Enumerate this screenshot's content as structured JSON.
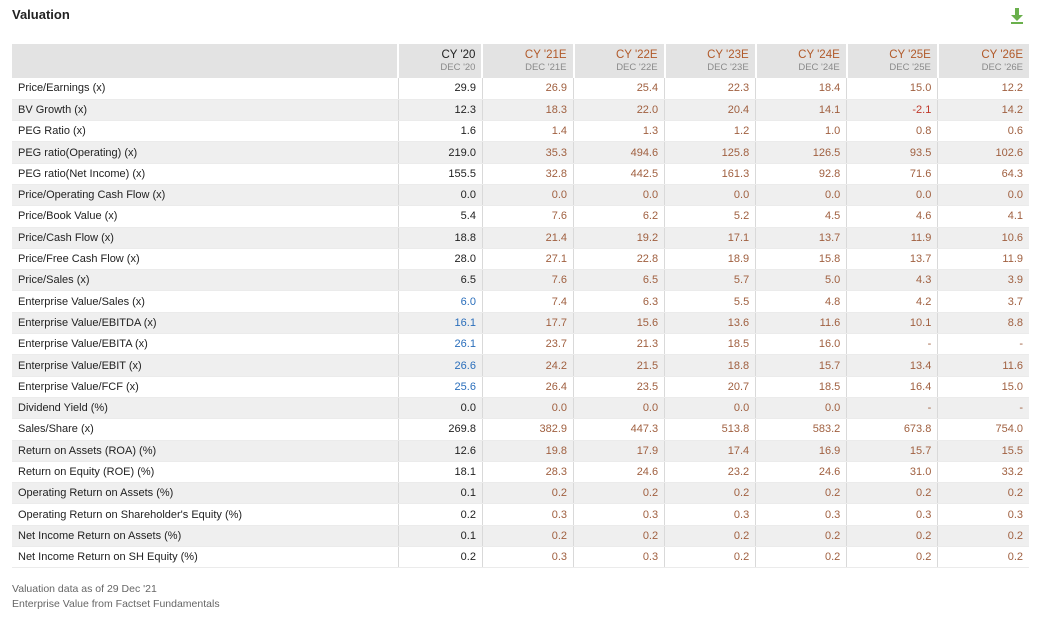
{
  "header": {
    "title": "Valuation",
    "download_icon": "download-arrow-icon",
    "download_color": "#6ab04c"
  },
  "columns": [
    {
      "year": "CY '20",
      "date": "DEC '20",
      "kind": "base"
    },
    {
      "year": "CY '21E",
      "date": "DEC '21E",
      "kind": "est"
    },
    {
      "year": "CY '22E",
      "date": "DEC '22E",
      "kind": "est"
    },
    {
      "year": "CY '23E",
      "date": "DEC '23E",
      "kind": "est"
    },
    {
      "year": "CY '24E",
      "date": "DEC '24E",
      "kind": "est"
    },
    {
      "year": "CY '25E",
      "date": "DEC '25E",
      "kind": "est"
    },
    {
      "year": "CY '26E",
      "date": "DEC '26E",
      "kind": "est"
    }
  ],
  "rows": [
    {
      "label": "Price/Earnings (x)",
      "values": [
        "29.9",
        "26.9",
        "25.4",
        "22.3",
        "18.4",
        "15.0",
        "12.2"
      ]
    },
    {
      "label": "BV Growth (x)",
      "values": [
        "12.3",
        "18.3",
        "22.0",
        "20.4",
        "14.1",
        "-2.1",
        "14.2"
      ]
    },
    {
      "label": "PEG Ratio (x)",
      "values": [
        "1.6",
        "1.4",
        "1.3",
        "1.2",
        "1.0",
        "0.8",
        "0.6"
      ]
    },
    {
      "label": "PEG ratio(Operating) (x)",
      "values": [
        "219.0",
        "35.3",
        "494.6",
        "125.8",
        "126.5",
        "93.5",
        "102.6"
      ]
    },
    {
      "label": "PEG ratio(Net Income) (x)",
      "values": [
        "155.5",
        "32.8",
        "442.5",
        "161.3",
        "92.8",
        "71.6",
        "64.3"
      ]
    },
    {
      "label": "Price/Operating Cash Flow (x)",
      "values": [
        "0.0",
        "0.0",
        "0.0",
        "0.0",
        "0.0",
        "0.0",
        "0.0"
      ]
    },
    {
      "label": "Price/Book Value (x)",
      "values": [
        "5.4",
        "7.6",
        "6.2",
        "5.2",
        "4.5",
        "4.6",
        "4.1"
      ]
    },
    {
      "label": "Price/Cash Flow (x)",
      "values": [
        "18.8",
        "21.4",
        "19.2",
        "17.1",
        "13.7",
        "11.9",
        "10.6"
      ]
    },
    {
      "label": "Price/Free Cash Flow (x)",
      "values": [
        "28.0",
        "27.1",
        "22.8",
        "18.9",
        "15.8",
        "13.7",
        "11.9"
      ]
    },
    {
      "label": "Price/Sales (x)",
      "values": [
        "6.5",
        "7.6",
        "6.5",
        "5.7",
        "5.0",
        "4.3",
        "3.9"
      ]
    },
    {
      "label": "Enterprise Value/Sales (x)",
      "values": [
        "6.0",
        "7.4",
        "6.3",
        "5.5",
        "4.8",
        "4.2",
        "3.7"
      ],
      "base_blue": true
    },
    {
      "label": "Enterprise Value/EBITDA (x)",
      "values": [
        "16.1",
        "17.7",
        "15.6",
        "13.6",
        "11.6",
        "10.1",
        "8.8"
      ],
      "base_blue": true
    },
    {
      "label": "Enterprise Value/EBITA (x)",
      "values": [
        "26.1",
        "23.7",
        "21.3",
        "18.5",
        "16.0",
        "-",
        "-"
      ],
      "base_blue": true
    },
    {
      "label": "Enterprise Value/EBIT (x)",
      "values": [
        "26.6",
        "24.2",
        "21.5",
        "18.8",
        "15.7",
        "13.4",
        "11.6"
      ],
      "base_blue": true
    },
    {
      "label": "Enterprise Value/FCF (x)",
      "values": [
        "25.6",
        "26.4",
        "23.5",
        "20.7",
        "18.5",
        "16.4",
        "15.0"
      ],
      "base_blue": true
    },
    {
      "label": "Dividend Yield (%)",
      "values": [
        "0.0",
        "0.0",
        "0.0",
        "0.0",
        "0.0",
        "-",
        "-"
      ]
    },
    {
      "label": "Sales/Share (x)",
      "values": [
        "269.8",
        "382.9",
        "447.3",
        "513.8",
        "583.2",
        "673.8",
        "754.0"
      ]
    },
    {
      "label": "Return on Assets (ROA) (%)",
      "values": [
        "12.6",
        "19.8",
        "17.9",
        "17.4",
        "16.9",
        "15.7",
        "15.5"
      ]
    },
    {
      "label": "Return on Equity (ROE) (%)",
      "values": [
        "18.1",
        "28.3",
        "24.6",
        "23.2",
        "24.6",
        "31.0",
        "33.2"
      ]
    },
    {
      "label": "Operating Return on Assets (%)",
      "values": [
        "0.1",
        "0.2",
        "0.2",
        "0.2",
        "0.2",
        "0.2",
        "0.2"
      ]
    },
    {
      "label": "Operating Return on Shareholder's Equity (%)",
      "values": [
        "0.2",
        "0.3",
        "0.3",
        "0.3",
        "0.3",
        "0.3",
        "0.3"
      ]
    },
    {
      "label": "Net Income Return on Assets (%)",
      "values": [
        "0.1",
        "0.2",
        "0.2",
        "0.2",
        "0.2",
        "0.2",
        "0.2"
      ]
    },
    {
      "label": "Net Income Return on SH Equity (%)",
      "values": [
        "0.2",
        "0.3",
        "0.3",
        "0.2",
        "0.2",
        "0.2",
        "0.2"
      ]
    }
  ],
  "footer": {
    "line1": "Valuation data as of 29 Dec '21",
    "line2": "Enterprise Value from Factset Fundamentals"
  },
  "colors": {
    "estimate_text": "#a06040",
    "base_link_text": "#2a6ebb",
    "negative_text": "#c0392b",
    "header_bg": "#e3e3e3"
  }
}
